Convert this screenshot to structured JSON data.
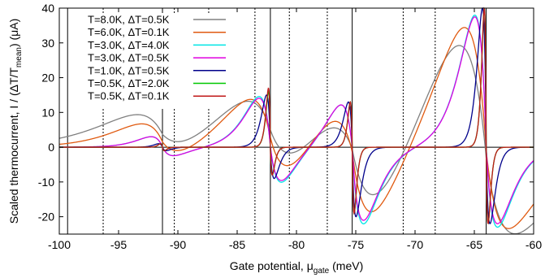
{
  "chart_data": {
    "type": "line",
    "title": "",
    "xlabel": "Gate potential, μ",
    "xlabel_sub": "gate",
    "xlabel_unit": " (meV)",
    "ylabel_main": "Scaled thermocurrent, I / (ΔT/T",
    "ylabel_sub": "mean",
    "ylabel_unit": ") (μA)",
    "xlim": [
      -100,
      -60
    ],
    "ylim": [
      -25,
      40
    ],
    "x_ticks": [
      -100,
      -95,
      -90,
      -85,
      -80,
      -75,
      -70,
      -65,
      -60
    ],
    "x_tick_labels": [
      "-100",
      "-95",
      "-90",
      "-85",
      "-80",
      "-75",
      "-70",
      "-65",
      "-60"
    ],
    "y_ticks": [
      -20,
      -10,
      0,
      10,
      20,
      30,
      40
    ],
    "y_tick_labels": [
      "-20",
      "-10",
      "0",
      "10",
      "20",
      "30",
      "40"
    ],
    "legend_position": "top-left",
    "solid_vlines_x": [
      -99.3,
      -91.3,
      -82.2,
      -75.3,
      -64.0
    ],
    "dotted_vlines_x": [
      -96.3,
      -90.3,
      -87.4,
      -83.5,
      -80.6,
      -77.4,
      -71.0,
      -68.3
    ],
    "resonances": [
      {
        "x0": -91.3,
        "sign": -1,
        "strength": 0.55
      },
      {
        "x0": -82.2,
        "sign": -1,
        "strength": 1.0
      },
      {
        "x0": -75.3,
        "sign": -1,
        "strength": 1.0
      },
      {
        "x0": -64.0,
        "sign": -1,
        "strength": 2.6
      }
    ],
    "series": [
      {
        "name": "T=8.0K, ΔT=0.5K",
        "color": "#808080",
        "T": 8.0,
        "peaks": {
          "a": 7.5,
          "b": -4.5,
          "c": 12,
          "d": -11,
          "e": 11.5,
          "f": -20,
          "g": 35.5,
          "h": -23.5
        }
      },
      {
        "name": "T=6.0K, ΔT=0.1K",
        "color": "#e05a10",
        "T": 6.0,
        "peaks": {
          "a": 6.0,
          "b": -3.8,
          "c": 13,
          "d": -11,
          "e": 12,
          "f": -20.5,
          "g": 36.5,
          "h": -23
        }
      },
      {
        "name": "T=3.0K, ΔT=4.0K",
        "color": "#00e5e5",
        "T": 3.0,
        "peaks": {
          "a": 3.0,
          "b": -2.5,
          "c": 14.5,
          "d": -10.5,
          "e": 12.5,
          "f": -22,
          "g": 38,
          "h": -23
        }
      },
      {
        "name": "T=3.0K, ΔT=0.5K",
        "color": "#e000e0",
        "T": 3.0,
        "peaks": {
          "a": 3.0,
          "b": -2.5,
          "c": 14,
          "d": -10,
          "e": 12.5,
          "f": -21,
          "g": 37.5,
          "h": -22
        }
      },
      {
        "name": "T=1.0K, ΔT=0.5K",
        "color": "#00008b",
        "T": 1.0,
        "peaks": {
          "a": 1.0,
          "b": -1.0,
          "c": 15,
          "d": -9,
          "e": 13,
          "f": -20,
          "g": 40,
          "h": -22
        }
      },
      {
        "name": "T=0.5K, ΔT=2.0K",
        "color": "#00c800",
        "T": 0.5,
        "peaks": {
          "a": 1.0,
          "b": -1.0,
          "c": 16,
          "d": -8,
          "e": 13,
          "f": -19,
          "g": 40,
          "h": -22
        }
      },
      {
        "name": "T=0.5K, ΔT=0.1K",
        "color": "#c01818",
        "T": 0.5,
        "peaks": {
          "a": 1.0,
          "b": -1.0,
          "c": 17,
          "d": -8,
          "e": 13,
          "f": -19,
          "g": 40,
          "h": -22
        }
      }
    ]
  }
}
